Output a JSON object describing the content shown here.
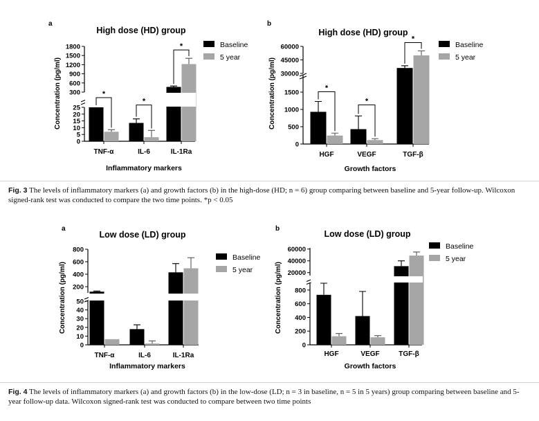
{
  "colors": {
    "baseline": "#000000",
    "five_year": "#a6a6a6",
    "axis": "#000000"
  },
  "legend": {
    "baseline": "Baseline",
    "five_year": "5 year"
  },
  "chart_data": [
    {
      "id": "fig3a",
      "panel_letter": "a",
      "type": "bar",
      "title": "High dose (HD) group",
      "xlabel": "Inflammatory markers",
      "ylabel": "Concentration (pg/ml)",
      "categories": [
        "TNF-α",
        "IL-6",
        "IL-1Ra"
      ],
      "series": [
        {
          "name": "Baseline",
          "values": [
            25,
            13.5,
            470
          ],
          "errors": [
            0,
            3,
            30
          ]
        },
        {
          "name": "5 year",
          "values": [
            7,
            3,
            1220
          ],
          "errors": [
            1.5,
            5,
            190
          ]
        }
      ],
      "y_segments": [
        {
          "range": [
            0,
            25
          ],
          "ticks": [
            0,
            5,
            10,
            15,
            20,
            25
          ]
        },
        {
          "range": [
            300,
            1800
          ],
          "ticks": [
            300,
            600,
            900,
            1200,
            1500,
            1800
          ]
        }
      ],
      "significance": [
        {
          "category": "TNF-α",
          "label": "*"
        },
        {
          "category": "IL-6",
          "label": "*"
        },
        {
          "category": "IL-1Ra",
          "label": "*"
        }
      ],
      "legend_position": "top-right"
    },
    {
      "id": "fig3b",
      "panel_letter": "b",
      "type": "bar",
      "title": "High dose (HD) group",
      "xlabel": "Growth factors",
      "ylabel": "Concentration (pg/ml)",
      "categories": [
        "HGF",
        "VEGF",
        "TGF-β"
      ],
      "series": [
        {
          "name": "Baseline",
          "values": [
            930,
            430,
            36000
          ],
          "errors": [
            300,
            380,
            2500
          ]
        },
        {
          "name": "5 year",
          "values": [
            245,
            115,
            50000
          ],
          "errors": [
            70,
            40,
            5000
          ]
        }
      ],
      "y_segments": [
        {
          "range": [
            0,
            2000
          ],
          "ticks": [
            0,
            500,
            1000,
            1500
          ]
        },
        {
          "range": [
            30000,
            60000
          ],
          "ticks": [
            30000,
            45000,
            60000
          ]
        }
      ],
      "significance": [
        {
          "category": "HGF",
          "label": "*"
        },
        {
          "category": "VEGF",
          "label": "*"
        },
        {
          "category": "TGF-β",
          "label": "*"
        }
      ],
      "legend_position": "top-right"
    },
    {
      "id": "fig4a",
      "panel_letter": "a",
      "type": "bar",
      "title": "Low dose (LD) group",
      "xlabel": "Inflammatory markers",
      "ylabel": "Concentration (pg/ml)",
      "categories": [
        "TNF-α",
        "IL-6",
        "IL-1Ra"
      ],
      "series": [
        {
          "name": "Baseline",
          "values": [
            120,
            18,
            430
          ],
          "errors": [
            10,
            5,
            140
          ]
        },
        {
          "name": "5 year",
          "values": [
            6.5,
            1.5,
            495
          ],
          "errors": [
            0,
            3,
            170
          ]
        }
      ],
      "y_segments": [
        {
          "range": [
            0,
            50
          ],
          "ticks": [
            0,
            10,
            20,
            30,
            40,
            50
          ]
        },
        {
          "range": [
            100,
            800
          ],
          "ticks": [
            200,
            400,
            600,
            800
          ]
        }
      ],
      "significance": [],
      "legend_position": "top-right"
    },
    {
      "id": "fig4b",
      "panel_letter": "b",
      "type": "bar",
      "title": "Low dose (LD) group",
      "xlabel": "Growth factors",
      "ylabel": "Concentration (pg/ml)",
      "categories": [
        "HGF",
        "VEGF",
        "TGF-β"
      ],
      "series": [
        {
          "name": "Baseline",
          "values": [
            730,
            420,
            31000
          ],
          "errors": [
            170,
            360,
            9000
          ]
        },
        {
          "name": "5 year",
          "values": [
            125,
            110,
            49000
          ],
          "errors": [
            40,
            25,
            6000
          ]
        }
      ],
      "y_segments": [
        {
          "range": [
            0,
            900
          ],
          "ticks": [
            0,
            200,
            400,
            600,
            800
          ]
        },
        {
          "range": [
            15000,
            62000
          ],
          "ticks": [
            20000,
            40000,
            60000
          ]
        }
      ],
      "significance": [],
      "legend_position": "top-right"
    }
  ],
  "captions": {
    "fig3": {
      "label": "Fig. 3",
      "text": "The levels of inflammatory markers (a) and growth factors (b) in the high-dose (HD; n = 6) group comparing between baseline and 5-year follow-up. Wilcoxon signed-rank test was conducted to compare the two time points. *p < 0.05"
    },
    "fig4": {
      "label": "Fig. 4",
      "text": "The levels of inflammatory markers (a) and growth factors (b) in the low-dose (LD; n = 3 in baseline, n = 5 in 5 years) group comparing between baseline and 5-year follow-up data. Wilcoxon signed-rank test was conducted to compare between two time points"
    }
  }
}
